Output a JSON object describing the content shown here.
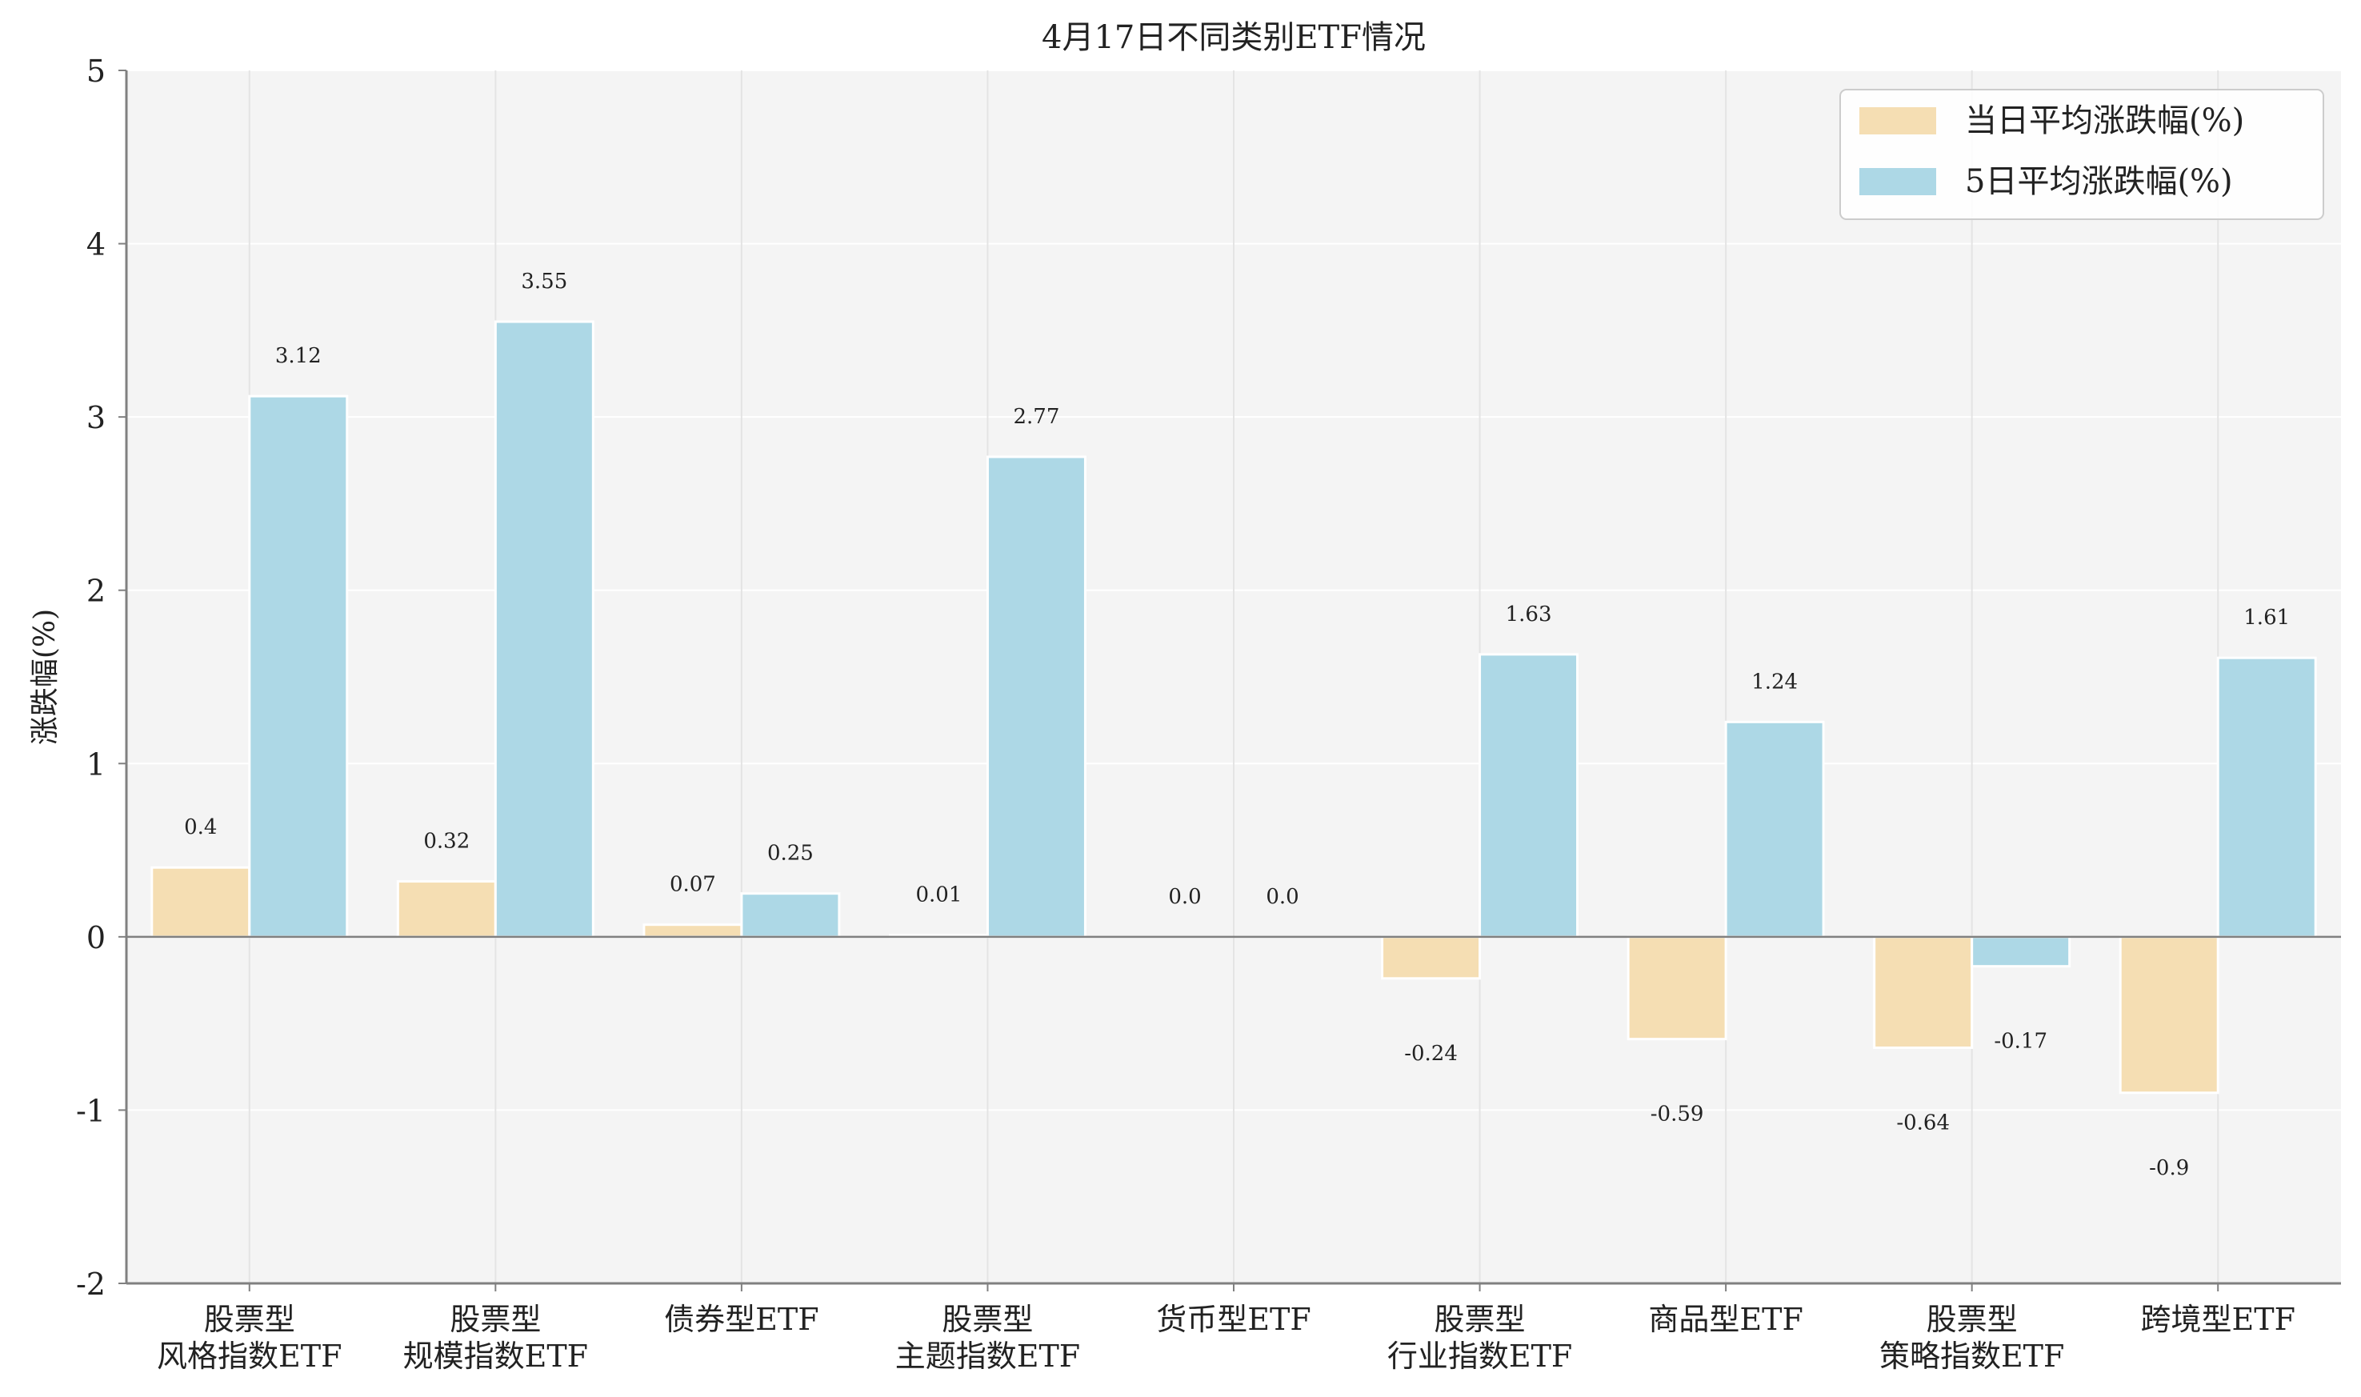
{
  "chart_data": {
    "type": "bar",
    "title": "4月17日不同类别ETF情况",
    "xlabel": "",
    "ylabel": "涨跌幅(%)",
    "ylim": [
      -2,
      5
    ],
    "yticks": [
      -2,
      -1,
      0,
      1,
      2,
      3,
      4,
      5
    ],
    "grid": true,
    "legend_position": "top-right",
    "categories": [
      [
        "股票型",
        "风格指数ETF"
      ],
      [
        "股票型",
        "规模指数ETF"
      ],
      [
        "债券型ETF"
      ],
      [
        "股票型",
        "主题指数ETF"
      ],
      [
        "货币型ETF"
      ],
      [
        "股票型",
        "行业指数ETF"
      ],
      [
        "商品型ETF"
      ],
      [
        "股票型",
        "策略指数ETF"
      ],
      [
        "跨境型ETF"
      ]
    ],
    "series": [
      {
        "name": "当日平均涨跌幅(%)",
        "color": "#f5deb3",
        "values": [
          0.4,
          0.32,
          0.07,
          0.01,
          0.0,
          -0.24,
          -0.59,
          -0.64,
          -0.9
        ],
        "labels": [
          "0.4",
          "0.32",
          "0.07",
          "0.01",
          "0.0",
          "-0.24",
          "-0.59",
          "-0.64",
          "-0.9"
        ]
      },
      {
        "name": "5日平均涨跌幅(%)",
        "color": "#add8e6",
        "values": [
          3.12,
          3.55,
          0.25,
          2.77,
          0.0,
          1.63,
          1.24,
          -0.17,
          1.61
        ],
        "labels": [
          "3.12",
          "3.55",
          "0.25",
          "2.77",
          "0.0",
          "1.63",
          "1.24",
          "-0.17",
          "1.61"
        ]
      }
    ],
    "colors": {
      "plot_background": "#f4f4f4",
      "grid": "#ffffff",
      "category_grid": "#e4e4e4",
      "axis": "#808080"
    }
  }
}
